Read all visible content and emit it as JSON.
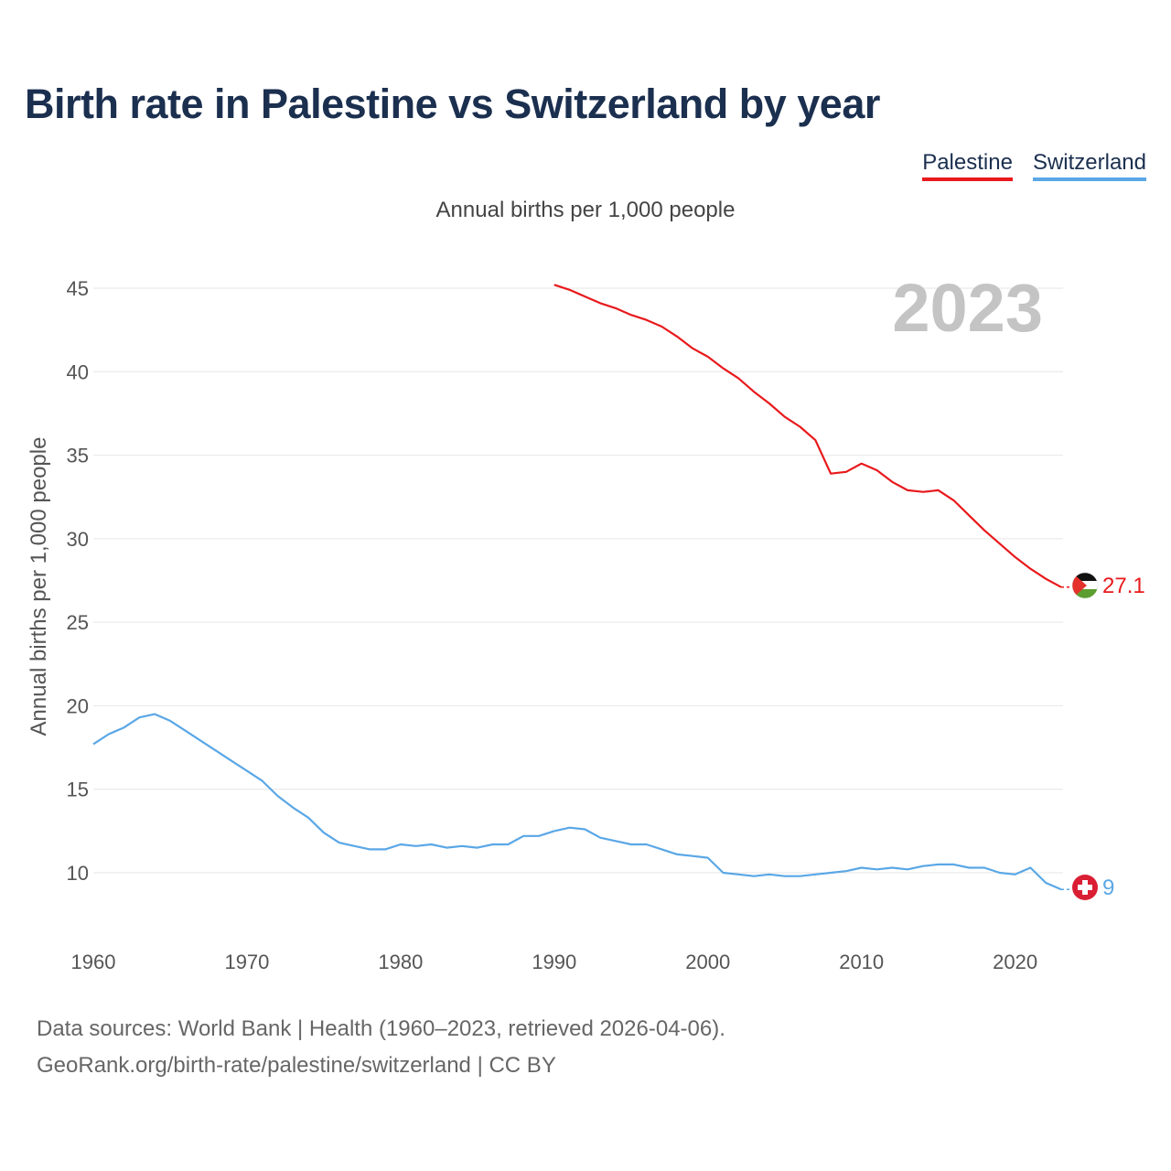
{
  "title": "Birth rate in Palestine vs Switzerland by year",
  "subtitle": "Annual births per 1,000 people",
  "legend": [
    {
      "name": "Palestine",
      "color": "#e8191c"
    },
    {
      "name": "Switzerland",
      "color": "#5aa7e6"
    }
  ],
  "year_label": "2023",
  "footer": {
    "line1": "Data sources: World Bank | Health (1960–2023, retrieved 2026-04-06).",
    "line2": "GeoRank.org/birth-rate/palestine/switzerland | CC BY"
  },
  "chart_data": {
    "type": "line",
    "title": "Birth rate in Palestine vs Switzerland by year",
    "xlabel": "",
    "ylabel": "Annual births per 1,000 people",
    "xlim": [
      1960,
      2023
    ],
    "ylim": [
      6.5,
      47
    ],
    "x_ticks": [
      1960,
      1970,
      1980,
      1990,
      2000,
      2010,
      2020
    ],
    "y_ticks": [
      10,
      15,
      20,
      25,
      30,
      35,
      40,
      45
    ],
    "grid": true,
    "series": [
      {
        "name": "Palestine",
        "color": "#e8191c",
        "end_label": "27.1",
        "x": [
          1990,
          1991,
          1992,
          1993,
          1994,
          1995,
          1996,
          1997,
          1998,
          1999,
          2000,
          2001,
          2002,
          2003,
          2004,
          2005,
          2006,
          2007,
          2008,
          2009,
          2010,
          2011,
          2012,
          2013,
          2014,
          2015,
          2016,
          2017,
          2018,
          2019,
          2020,
          2021,
          2022,
          2023
        ],
        "values": [
          45.2,
          44.9,
          44.5,
          44.1,
          43.8,
          43.4,
          43.1,
          42.7,
          42.1,
          41.4,
          40.9,
          40.2,
          39.6,
          38.8,
          38.1,
          37.3,
          36.7,
          35.9,
          33.9,
          34.0,
          34.5,
          34.1,
          33.4,
          32.9,
          32.8,
          32.9,
          32.3,
          31.4,
          30.5,
          29.7,
          28.9,
          28.2,
          27.6,
          27.1
        ]
      },
      {
        "name": "Switzerland",
        "color": "#5aa7e6",
        "end_label": "9",
        "x": [
          1960,
          1961,
          1962,
          1963,
          1964,
          1965,
          1966,
          1967,
          1968,
          1969,
          1970,
          1971,
          1972,
          1973,
          1974,
          1975,
          1976,
          1977,
          1978,
          1979,
          1980,
          1981,
          1982,
          1983,
          1984,
          1985,
          1986,
          1987,
          1988,
          1989,
          1990,
          1991,
          1992,
          1993,
          1994,
          1995,
          1996,
          1997,
          1998,
          1999,
          2000,
          2001,
          2002,
          2003,
          2004,
          2005,
          2006,
          2007,
          2008,
          2009,
          2010,
          2011,
          2012,
          2013,
          2014,
          2015,
          2016,
          2017,
          2018,
          2019,
          2020,
          2021,
          2022,
          2023
        ],
        "values": [
          17.7,
          18.3,
          18.7,
          19.3,
          19.5,
          19.1,
          18.5,
          17.9,
          17.3,
          16.7,
          16.1,
          15.5,
          14.6,
          13.9,
          13.3,
          12.4,
          11.8,
          11.6,
          11.4,
          11.4,
          11.7,
          11.6,
          11.7,
          11.5,
          11.6,
          11.5,
          11.7,
          11.7,
          12.2,
          12.2,
          12.5,
          12.7,
          12.6,
          12.1,
          11.9,
          11.7,
          11.7,
          11.4,
          11.1,
          11.0,
          10.9,
          10.0,
          9.9,
          9.8,
          9.9,
          9.8,
          9.8,
          9.9,
          10.0,
          10.1,
          10.3,
          10.2,
          10.3,
          10.2,
          10.4,
          10.5,
          10.5,
          10.3,
          10.3,
          10.0,
          9.9,
          10.3,
          9.4,
          9.0
        ]
      }
    ]
  }
}
